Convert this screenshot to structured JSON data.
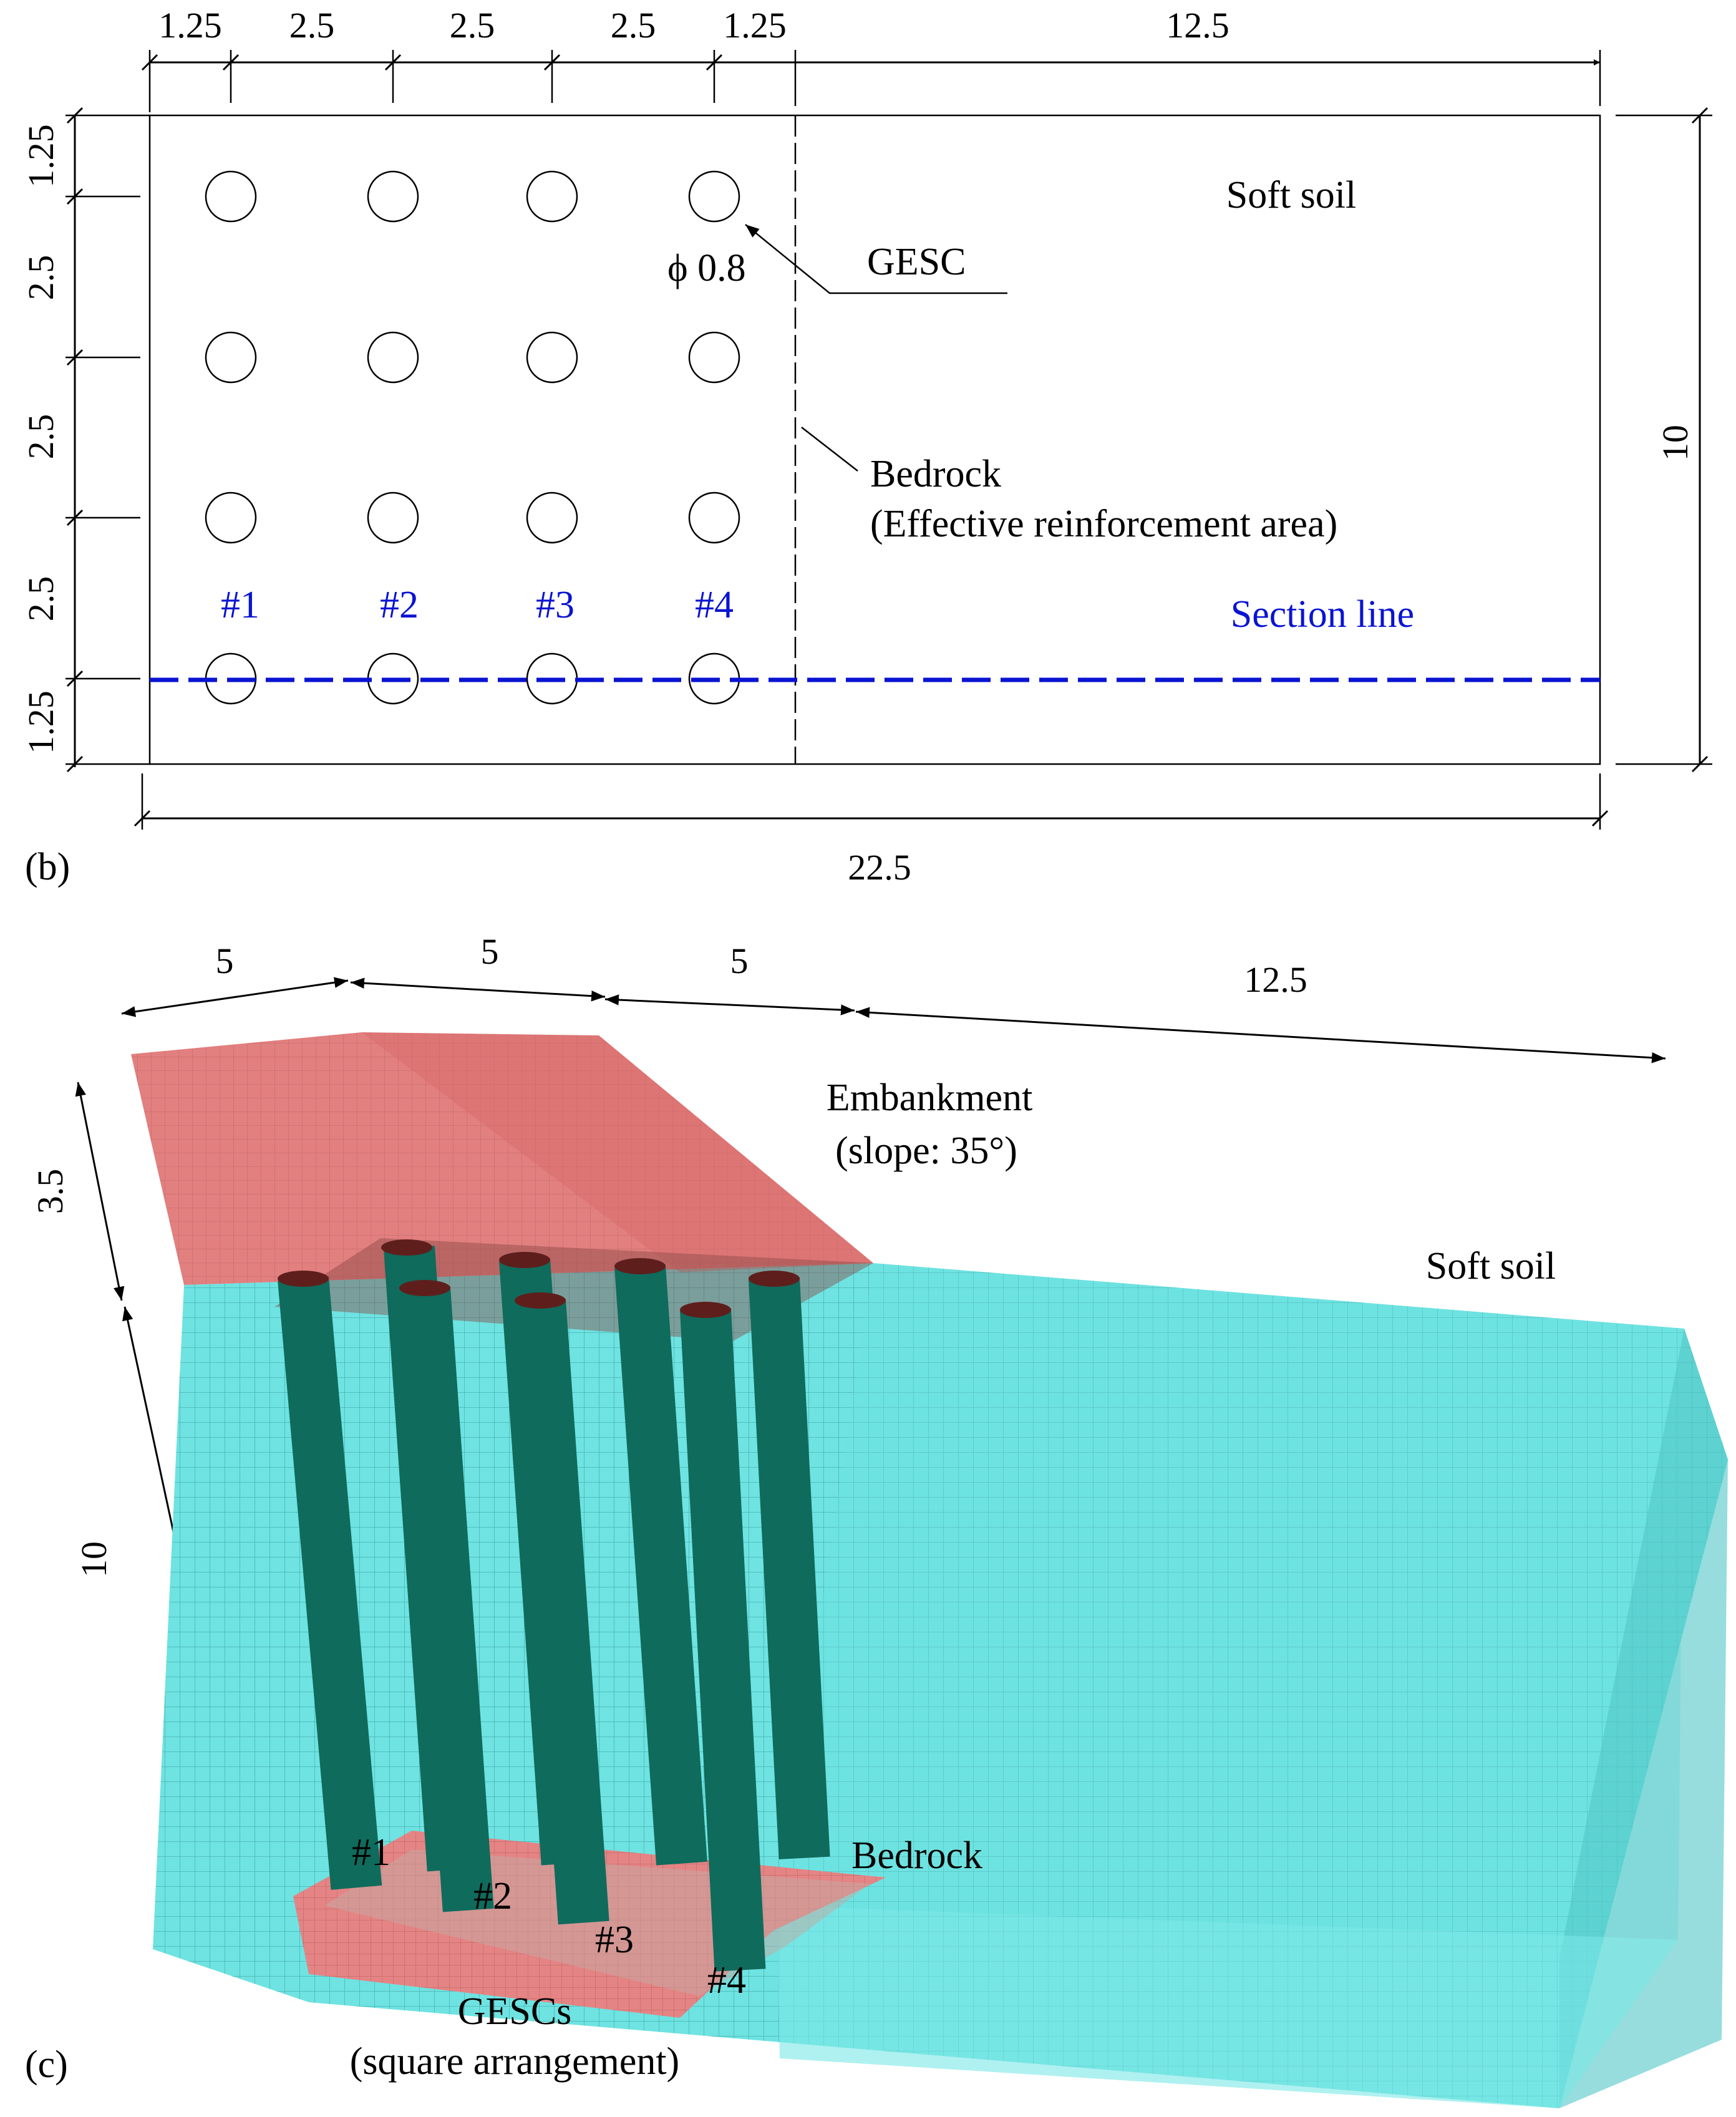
{
  "panel_b": {
    "label": "(b)",
    "top_dims": [
      "1.25",
      "2.5",
      "2.5",
      "2.5",
      "1.25",
      "12.5"
    ],
    "left_dims": [
      "1.25",
      "2.5",
      "2.5",
      "2.5",
      "1.25"
    ],
    "right_dim": "10",
    "bottom_dim": "22.5",
    "soft_soil": "Soft soil",
    "gesc": "GESC",
    "diameter": "ϕ 0.8",
    "bedrock": "Bedrock",
    "effective_area": "(Effective reinforcement area)",
    "column_ids": [
      "#1",
      "#2",
      "#3",
      "#4"
    ],
    "section_line": "Section line",
    "colors": {
      "section_line": "#0a14d2",
      "outline": "#000000"
    }
  },
  "panel_c": {
    "label": "(c)",
    "top_dims": [
      "5",
      "5",
      "5",
      "12.5"
    ],
    "height_embankment": "3.5",
    "height_soil": "10",
    "embankment": "Embankment",
    "slope": "(slope: 35°)",
    "soft_soil": "Soft soil",
    "bedrock": "Bedrock",
    "column_ids": [
      "#1",
      "#2",
      "#3",
      "#4"
    ],
    "gescs": "GESCs",
    "arrangement": "(square arrangement)",
    "colors": {
      "embankment": "#e07d7d",
      "soil": "#6ee3e1",
      "columns": "#0f6b5c",
      "bedrock": "#e58484"
    }
  }
}
